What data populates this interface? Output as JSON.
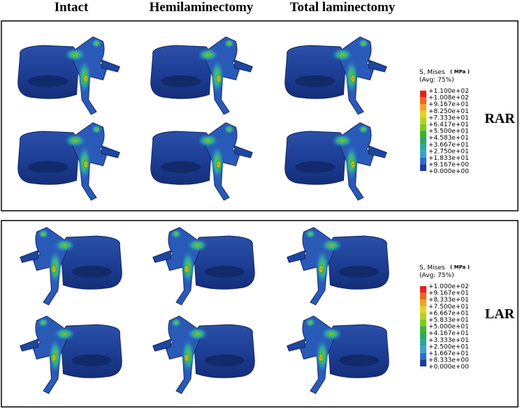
{
  "header": {
    "columns": [
      "Intact",
      "Hemilaminectomy",
      "Total laminectomy"
    ]
  },
  "panels": [
    {
      "label": "RAR",
      "legend": {
        "title": "S, Mises",
        "unit": "( MPa )",
        "avg": "(Avg: 75%)",
        "labels": [
          "+1.100e+02",
          "+1.008e+02",
          "+9.167e+01",
          "+8.250e+01",
          "+7.333e+01",
          "+6.417e+01",
          "+5.500e+01",
          "+4.583e+01",
          "+3.667e+01",
          "+2.750e+01",
          "+1.833e+01",
          "+9.167e+00",
          "+0.000e+00"
        ],
        "colors": [
          "#e8201c",
          "#f0641c",
          "#f4a21c",
          "#e8d21c",
          "#b4d21c",
          "#7cc81c",
          "#3cb42c",
          "#2ca864",
          "#2ca8a0",
          "#3ca0d2",
          "#2c6ec8",
          "#1c3ca0"
        ]
      }
    },
    {
      "label": "LAR",
      "legend": {
        "title": "S, Mises",
        "unit": "( MPa )",
        "avg": "(Avg: 75%)",
        "labels": [
          "+1.000e+02",
          "+9.167e+01",
          "+8.333e+01",
          "+7.500e+01",
          "+6.667e+01",
          "+5.833e+01",
          "+5.000e+01",
          "+4.167e+01",
          "+3.333e+01",
          "+2.500e+01",
          "+1.667e+01",
          "+8.333e+00",
          "+0.000e+00"
        ],
        "colors": [
          "#e8201c",
          "#f0641c",
          "#f4a21c",
          "#e8d21c",
          "#b4d21c",
          "#7cc81c",
          "#3cb42c",
          "#2ca864",
          "#2ca8a0",
          "#3ca0d2",
          "#2c6ec8",
          "#1c3ca0"
        ]
      }
    }
  ]
}
